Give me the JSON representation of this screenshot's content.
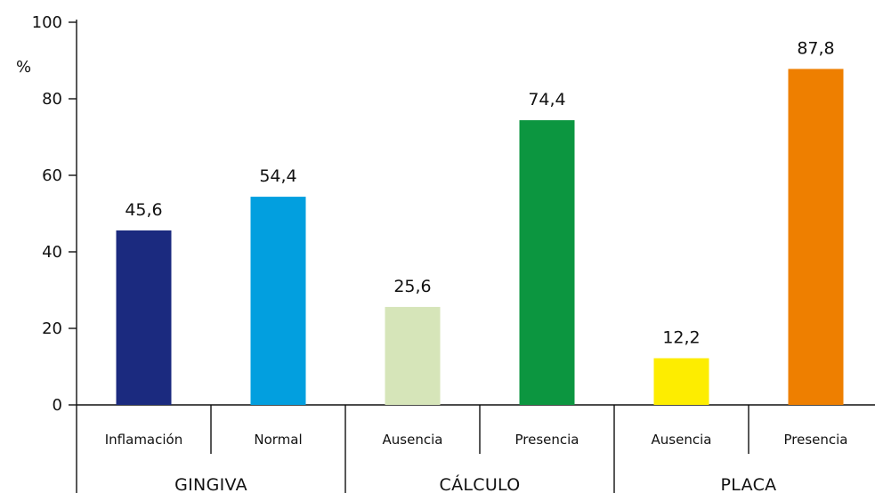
{
  "chart_data": {
    "type": "bar",
    "title": "",
    "ylabel": "%",
    "xlabel": "",
    "ylim": [
      0,
      100
    ],
    "yticks": [
      0,
      20,
      40,
      60,
      80,
      100
    ],
    "grid": false,
    "legend": "none",
    "groups": [
      {
        "label": "GINGIVA",
        "categories": [
          "Inflamación",
          "Normal"
        ]
      },
      {
        "label": "CÁLCULO",
        "categories": [
          "Ausencia",
          "Presencia"
        ]
      },
      {
        "label": "PLACA",
        "categories": [
          "Ausencia",
          "Presencia"
        ]
      }
    ],
    "categories": [
      "Inflamación",
      "Normal",
      "Ausencia",
      "Presencia",
      "Ausencia",
      "Presencia"
    ],
    "values": [
      45.6,
      54.4,
      25.6,
      74.4,
      12.2,
      87.8
    ],
    "value_labels": [
      "45,6",
      "54,4",
      "25,6",
      "74,4",
      "12,2",
      "87,8"
    ],
    "colors": [
      "#1b2a7f",
      "#029fdf",
      "#d6e5b9",
      "#0c9640",
      "#fded00",
      "#ee7f00"
    ]
  }
}
